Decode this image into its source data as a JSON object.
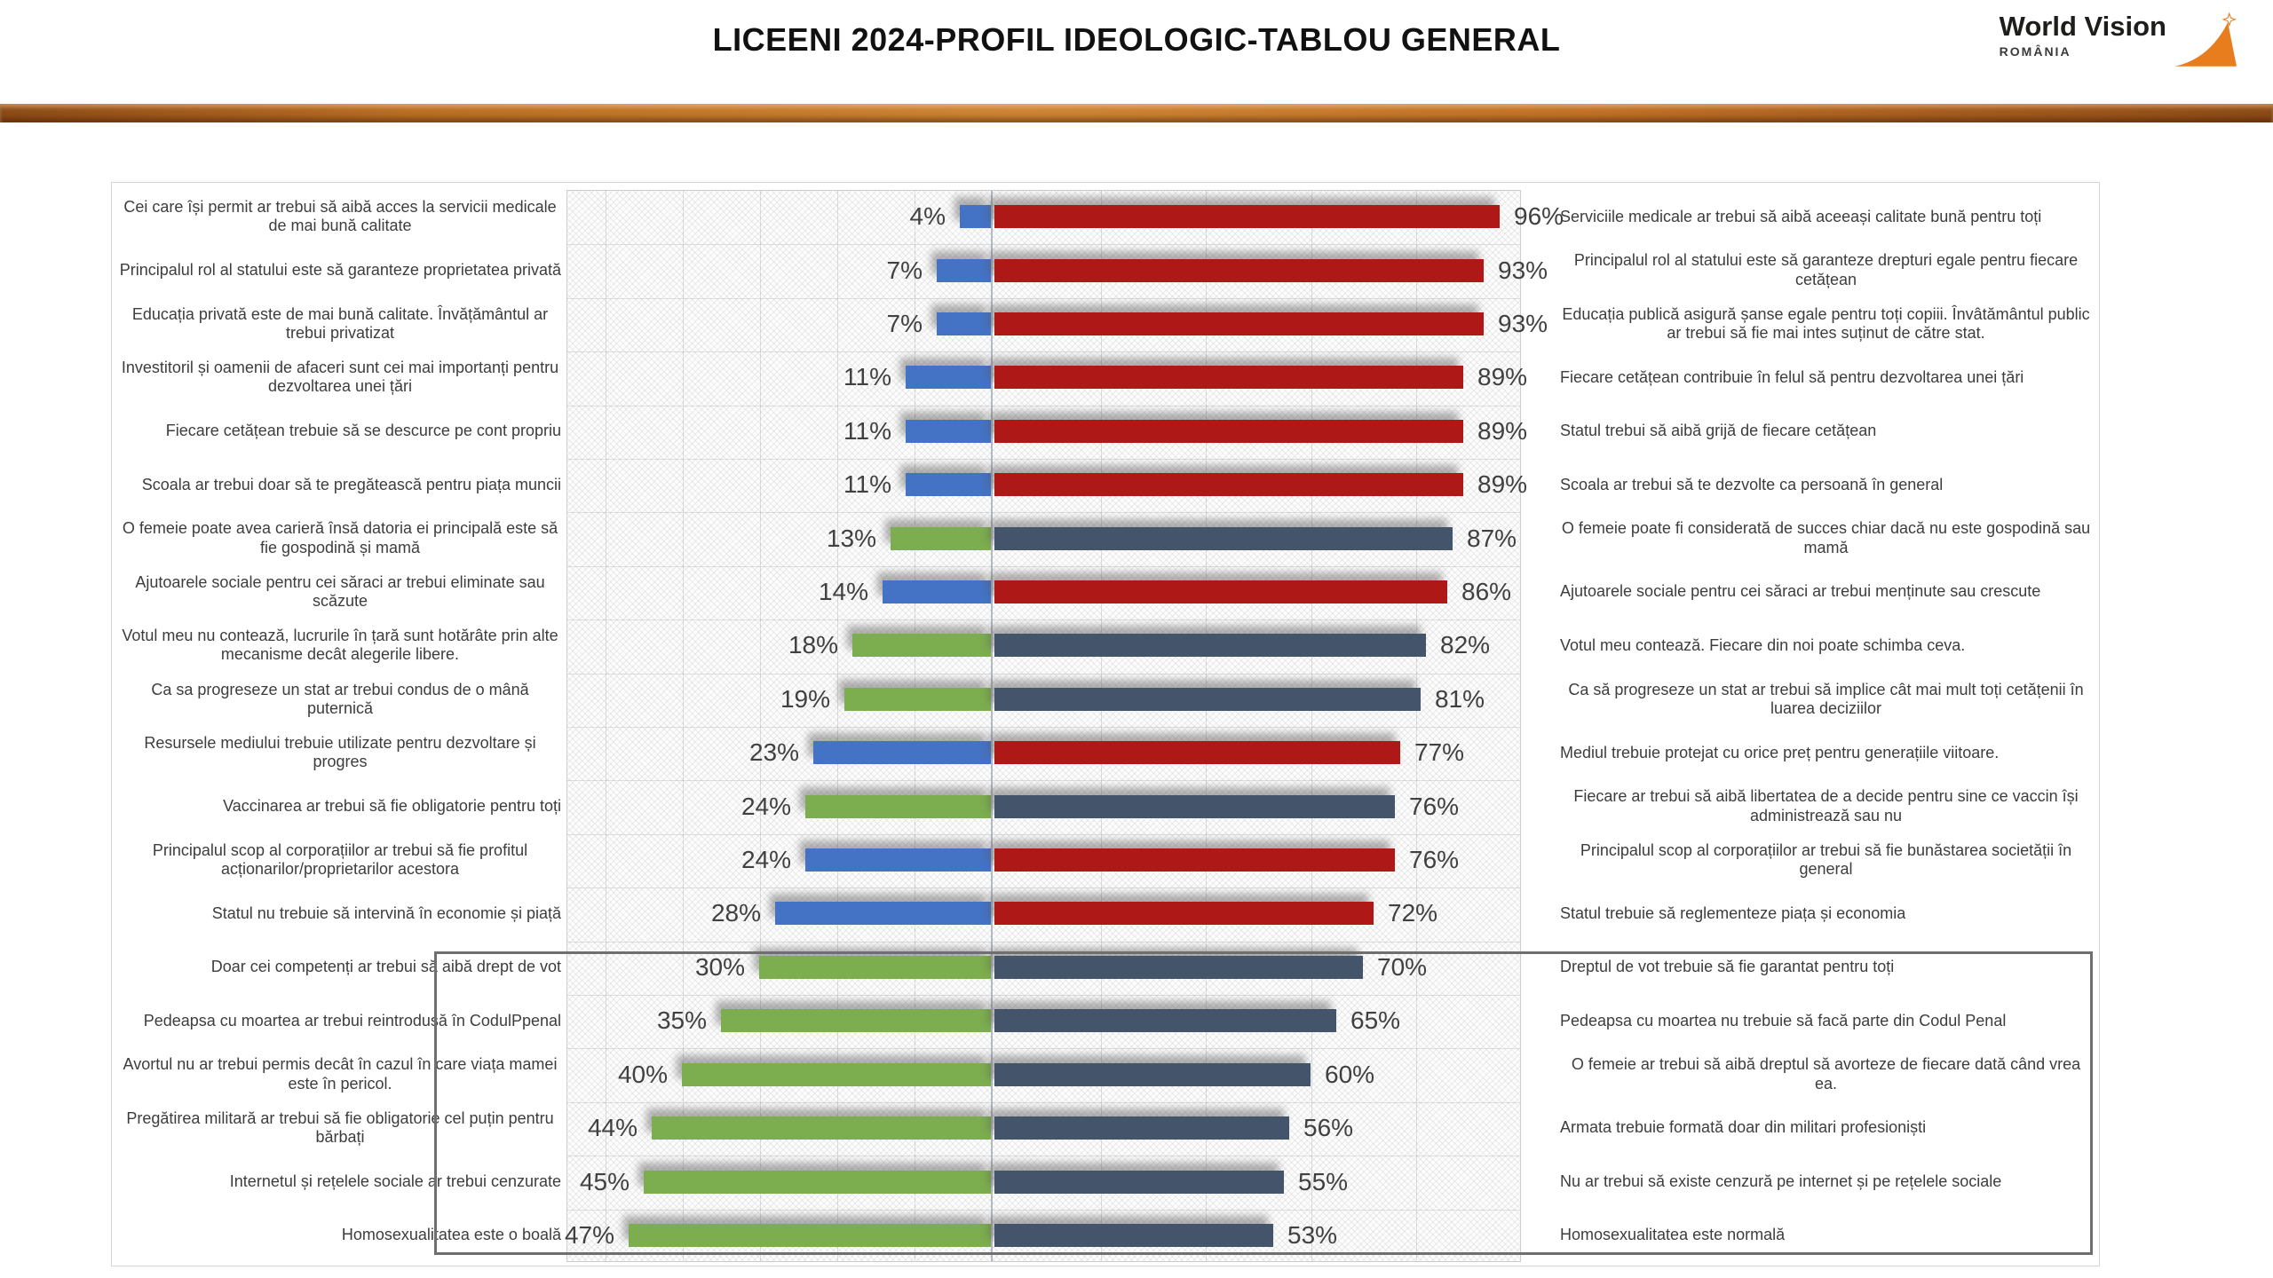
{
  "header": {
    "title": "LICEENI 2024-PROFIL IDEOLOGIC-TABLOU GENERAL",
    "logo": {
      "brand": "World Vision",
      "country": "ROMÂNIA",
      "accent_color": "#E87D1E"
    }
  },
  "chart_data": {
    "type": "bar",
    "variant": "diverging-horizontal-paired-statements",
    "value_suffix": "%",
    "left_axis_max_pct": 55,
    "right_axis_max_pct": 100,
    "grid": true,
    "colors": {
      "left_blue": "#4472C4",
      "left_green": "#7CAD4E",
      "right_red": "#AE1917",
      "right_slate": "#44546A",
      "divider_orange": "#C07127"
    },
    "rows": [
      {
        "left_label": "Cei care își permit ar trebui să aibă acces la servicii medicale de mai bună calitate",
        "left_value": 4,
        "right_value": 96,
        "right_label": "Serviciile medicale ar trebui să aibă aceeași calitate bună pentru toți",
        "scheme": "blue-red",
        "boxed": false
      },
      {
        "left_label": "Principalul rol al statului este să garanteze proprietatea privată",
        "left_value": 7,
        "right_value": 93,
        "right_label": "Principalul rol al statului este să garanteze drepturi egale pentru fiecare cetățean",
        "scheme": "blue-red",
        "boxed": false
      },
      {
        "left_label": "Educația privată este de mai bună calitate. Învățământul ar trebui privatizat",
        "left_value": 7,
        "right_value": 93,
        "right_label": "Educația publică asigură șanse egale pentru toți copiii. Învâtământul public ar trebui să fie mai intes suținut de către stat.",
        "scheme": "blue-red",
        "boxed": false
      },
      {
        "left_label": "Investitoril și oamenii de afaceri sunt cei mai importanți pentru dezvoltarea unei țări",
        "left_value": 11,
        "right_value": 89,
        "right_label": "Fiecare cetățean contribuie în felul să pentru dezvoltarea unei țări",
        "scheme": "blue-red",
        "boxed": false
      },
      {
        "left_label": "Fiecare cetățean trebuie să se descurce pe cont propriu",
        "left_value": 11,
        "right_value": 89,
        "right_label": "Statul trebui să aibă grijă de fiecare cetățean",
        "scheme": "blue-red",
        "boxed": false
      },
      {
        "left_label": "Scoala ar trebui doar să te pregătească pentru piața muncii",
        "left_value": 11,
        "right_value": 89,
        "right_label": "Scoala ar trebui să te dezvolte ca persoană în general",
        "scheme": "blue-red",
        "boxed": false
      },
      {
        "left_label": "O femeie poate avea carieră însă datoria ei principală este să fie gospodină și mamă",
        "left_value": 13,
        "right_value": 87,
        "right_label": "O femeie poate fi considerată de succes chiar dacă nu este gospodină sau mamă",
        "scheme": "green-slate",
        "boxed": false
      },
      {
        "left_label": "Ajutoarele sociale pentru cei săraci ar trebui eliminate sau scăzute",
        "left_value": 14,
        "right_value": 86,
        "right_label": "Ajutoarele sociale pentru cei săraci ar trebui menținute sau crescute",
        "scheme": "blue-red",
        "boxed": false
      },
      {
        "left_label": "Votul meu nu contează, lucrurile în țară sunt hotărâte prin alte mecanisme decât alegerile libere.",
        "left_value": 18,
        "right_value": 82,
        "right_label": "Votul meu contează. Fiecare din noi poate schimba ceva.",
        "scheme": "green-slate",
        "boxed": false
      },
      {
        "left_label": "Ca sa progreseze un stat ar trebui condus de o mână puternică",
        "left_value": 19,
        "right_value": 81,
        "right_label": "Ca să progreseze un stat ar trebui să implice cât mai mult toți cetățenii în luarea deciziilor",
        "scheme": "green-slate",
        "boxed": false
      },
      {
        "left_label": "Resursele mediului trebuie utilizate pentru dezvoltare și progres",
        "left_value": 23,
        "right_value": 77,
        "right_label": "Mediul trebuie protejat cu orice preț pentru generațiile viitoare.",
        "scheme": "blue-red",
        "boxed": false
      },
      {
        "left_label": "Vaccinarea ar trebui să fie obligatorie pentru toți",
        "left_value": 24,
        "right_value": 76,
        "right_label": "Fiecare ar trebui să aibă libertatea de a decide pentru sine ce vaccin își administrează sau nu",
        "scheme": "green-slate",
        "boxed": false
      },
      {
        "left_label": "Principalul scop al corporațiilor ar trebui să fie profitul acționarilor/proprietarilor acestora",
        "left_value": 24,
        "right_value": 76,
        "right_label": "Principalul scop al corporațiilor ar trebui să fie bunăstarea societății în general",
        "scheme": "blue-red",
        "boxed": false
      },
      {
        "left_label": "Statul nu trebuie să intervină în economie și piață",
        "left_value": 28,
        "right_value": 72,
        "right_label": "Statul trebuie să reglementeze piața și economia",
        "scheme": "blue-red",
        "boxed": false
      },
      {
        "left_label": "Doar cei competenți ar trebui să aibă drept de vot",
        "left_value": 30,
        "right_value": 70,
        "right_label": "Dreptul de vot trebuie să fie garantat pentru toți",
        "scheme": "green-slate",
        "boxed": true
      },
      {
        "left_label": "Pedeapsa cu moartea ar trebui reintrodusă în CodulPpenal",
        "left_value": 35,
        "right_value": 65,
        "right_label": "Pedeapsa cu moartea nu trebuie să facă parte din Codul Penal",
        "scheme": "green-slate",
        "boxed": true
      },
      {
        "left_label": "Avortul nu ar trebui permis decât în cazul în care viața mamei este în pericol.",
        "left_value": 40,
        "right_value": 60,
        "right_label": "O femeie ar trebui să aibă dreptul să avorteze de fiecare dată când vrea ea.",
        "scheme": "green-slate",
        "boxed": true
      },
      {
        "left_label": "Pregătirea militară ar trebui să fie obligatorie cel puțin pentru bărbați",
        "left_value": 44,
        "right_value": 56,
        "right_label": "Armata trebuie formată doar din militari profesioniști",
        "scheme": "green-slate",
        "boxed": true
      },
      {
        "left_label": "Internetul și rețelele sociale ar trebui cenzurate",
        "left_value": 45,
        "right_value": 55,
        "right_label": "Nu ar trebui să existe cenzură pe internet și pe rețelele sociale",
        "scheme": "green-slate",
        "boxed": true
      },
      {
        "left_label": "Homosexualitatea este o boală",
        "left_value": 47,
        "right_value": 53,
        "right_label": "Homosexualitatea este normală",
        "scheme": "green-slate",
        "boxed": true
      }
    ]
  }
}
